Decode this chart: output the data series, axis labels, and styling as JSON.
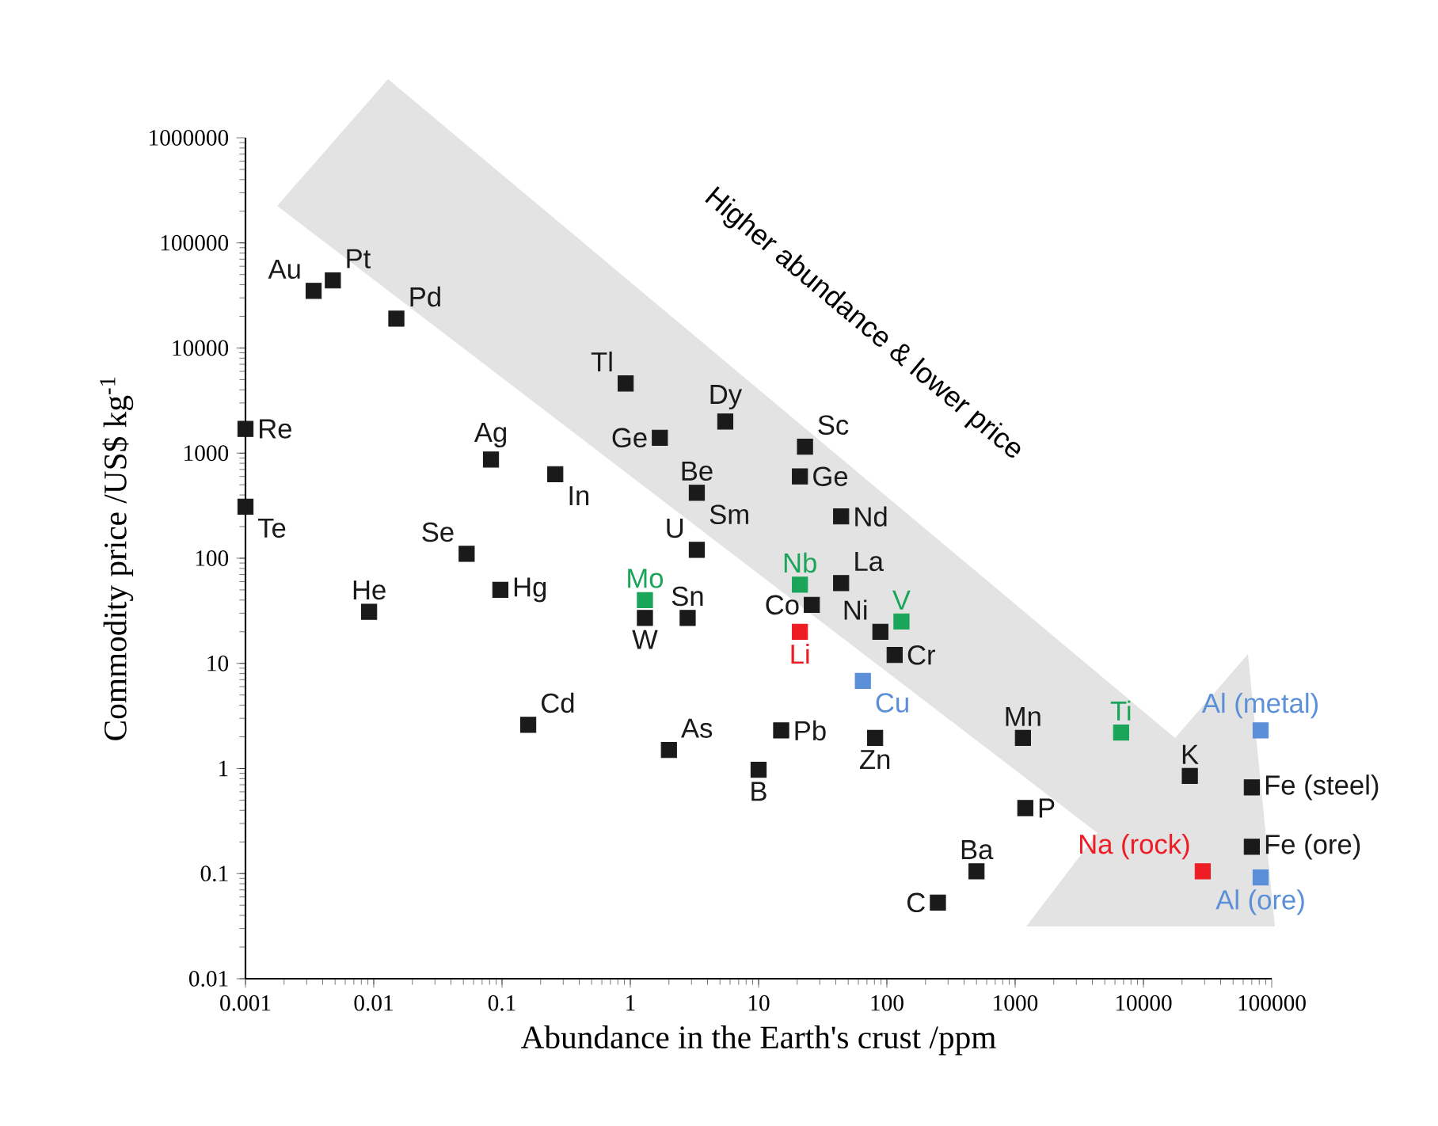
{
  "chart_data": {
    "type": "scatter",
    "xlabel": "Abundance in the Earth's crust /ppm",
    "ylabel": "Commodity price /US$ kg$^{-1}$",
    "log": "xy",
    "marker": "square",
    "xlim": [
      0.001,
      100000
    ],
    "ylim": [
      0.01,
      1000000
    ],
    "xticks": [
      0.001,
      0.01,
      0.1,
      1,
      10,
      100,
      1000,
      10000,
      100000
    ],
    "yticks": [
      0.01,
      0.1,
      1,
      10,
      100,
      1000,
      10000,
      100000,
      1000000
    ],
    "x": [
      0.0034,
      0.0048,
      0.015,
      0.001,
      0.001,
      0.0092,
      0.053,
      0.097,
      0.082,
      0.26,
      0.16,
      0.92,
      1.7,
      1.3,
      1.3,
      3.3,
      3.3,
      2.8,
      2.0,
      5.5,
      15,
      10,
      23,
      21,
      21,
      21,
      26,
      44,
      44,
      89,
      65,
      130,
      115,
      81,
      250,
      500,
      1150,
      1200,
      6700,
      23000,
      29000,
      82000,
      70000,
      70000,
      82000
    ],
    "values": [
      35000,
      44000,
      19000,
      1700,
      310,
      31,
      110,
      50,
      870,
      630,
      2.6,
      4600,
      1400,
      40,
      27,
      120,
      420,
      27,
      1.5,
      2000,
      2.3,
      0.97,
      1150,
      600,
      56,
      20,
      36,
      250,
      58,
      20,
      6.8,
      25,
      12,
      1.95,
      0.053,
      0.105,
      1.95,
      0.42,
      2.2,
      0.85,
      0.105,
      2.3,
      0.66,
      0.18,
      0.092
    ],
    "colors": [
      "#1a1a1a",
      "#1a1a1a",
      "#1a1a1a",
      "#1a1a1a",
      "#1a1a1a",
      "#1a1a1a",
      "#1a1a1a",
      "#1a1a1a",
      "#1a1a1a",
      "#1a1a1a",
      "#1a1a1a",
      "#1a1a1a",
      "#1a1a1a",
      "#1aa55a",
      "#1a1a1a",
      "#1a1a1a",
      "#1a1a1a",
      "#1a1a1a",
      "#1a1a1a",
      "#1a1a1a",
      "#1a1a1a",
      "#1a1a1a",
      "#1a1a1a",
      "#1a1a1a",
      "#1aa55a",
      "#ee1c24",
      "#1a1a1a",
      "#1a1a1a",
      "#1a1a1a",
      "#1a1a1a",
      "#5b8fd8",
      "#1aa55a",
      "#1a1a1a",
      "#1a1a1a",
      "#1a1a1a",
      "#1a1a1a",
      "#1a1a1a",
      "#1a1a1a",
      "#1aa55a",
      "#1a1a1a",
      "#ee1c24",
      "#5b8fd8",
      "#1a1a1a",
      "#1a1a1a",
      "#5b8fd8"
    ],
    "annotations": [
      {
        "text": "Au",
        "x": 0.0034,
        "y": 35000
      },
      {
        "text": "Pt",
        "x": 0.0048,
        "y": 44000
      },
      {
        "text": "Pd",
        "x": 0.015,
        "y": 19000
      },
      {
        "text": "Re",
        "x": 0.001,
        "y": 1700
      },
      {
        "text": "Te",
        "x": 0.001,
        "y": 310
      },
      {
        "text": "He",
        "x": 0.0092,
        "y": 31
      },
      {
        "text": "Se",
        "x": 0.053,
        "y": 110
      },
      {
        "text": "Hg",
        "x": 0.097,
        "y": 50
      },
      {
        "text": "Ag",
        "x": 0.082,
        "y": 870
      },
      {
        "text": "In",
        "x": 0.26,
        "y": 630
      },
      {
        "text": "Cd",
        "x": 0.16,
        "y": 2.6
      },
      {
        "text": "Tl",
        "x": 0.92,
        "y": 4600
      },
      {
        "text": "Ge",
        "x": 1.7,
        "y": 1400
      },
      {
        "text": "Mo",
        "x": 1.3,
        "y": 40
      },
      {
        "text": "W",
        "x": 1.3,
        "y": 27
      },
      {
        "text": "U",
        "x": 3.3,
        "y": 120
      },
      {
        "text": "Be",
        "x": 3.3,
        "y": 420
      },
      {
        "text": "Sn",
        "x": 2.8,
        "y": 27
      },
      {
        "text": "As",
        "x": 2.0,
        "y": 1.5
      },
      {
        "text": "Dy",
        "x": 5.5,
        "y": 2000
      },
      {
        "text": "Pb",
        "x": 15,
        "y": 2.3
      },
      {
        "text": "B",
        "x": 10,
        "y": 0.97
      },
      {
        "text": "Sc",
        "x": 23,
        "y": 1150
      },
      {
        "text": "Ge",
        "x": 21,
        "y": 600
      },
      {
        "text": "Nb",
        "x": 21,
        "y": 56
      },
      {
        "text": "Li",
        "x": 21,
        "y": 20
      },
      {
        "text": "Co",
        "x": 26,
        "y": 36
      },
      {
        "text": "Nd",
        "x": 44,
        "y": 250
      },
      {
        "text": "La",
        "x": 44,
        "y": 58
      },
      {
        "text": "Ni",
        "x": 89,
        "y": 20
      },
      {
        "text": "Cu",
        "x": 65,
        "y": 6.8
      },
      {
        "text": "V",
        "x": 130,
        "y": 25
      },
      {
        "text": "Cr",
        "x": 115,
        "y": 12
      },
      {
        "text": "Zn",
        "x": 81,
        "y": 1.95
      },
      {
        "text": "C",
        "x": 250,
        "y": 0.053
      },
      {
        "text": "Ba",
        "x": 500,
        "y": 0.105
      },
      {
        "text": "Mn",
        "x": 1150,
        "y": 1.95
      },
      {
        "text": "P",
        "x": 1200,
        "y": 0.42
      },
      {
        "text": "Ti",
        "x": 6700,
        "y": 2.2
      },
      {
        "text": "K",
        "x": 23000,
        "y": 0.85
      },
      {
        "text": "Na (rock)",
        "x": 29000,
        "y": 0.105
      },
      {
        "text": "Al (metal)",
        "x": 82000,
        "y": 2.3
      },
      {
        "text": "Fe (steel)",
        "x": 70000,
        "y": 0.66
      },
      {
        "text": "Fe (ore)",
        "x": 70000,
        "y": 0.18
      },
      {
        "text": "Al (ore)",
        "x": 82000,
        "y": 0.092
      },
      {
        "text": "Sm",
        "x": 3.3,
        "y": 420
      },
      "Higher abundance & lower price"
    ]
  }
}
